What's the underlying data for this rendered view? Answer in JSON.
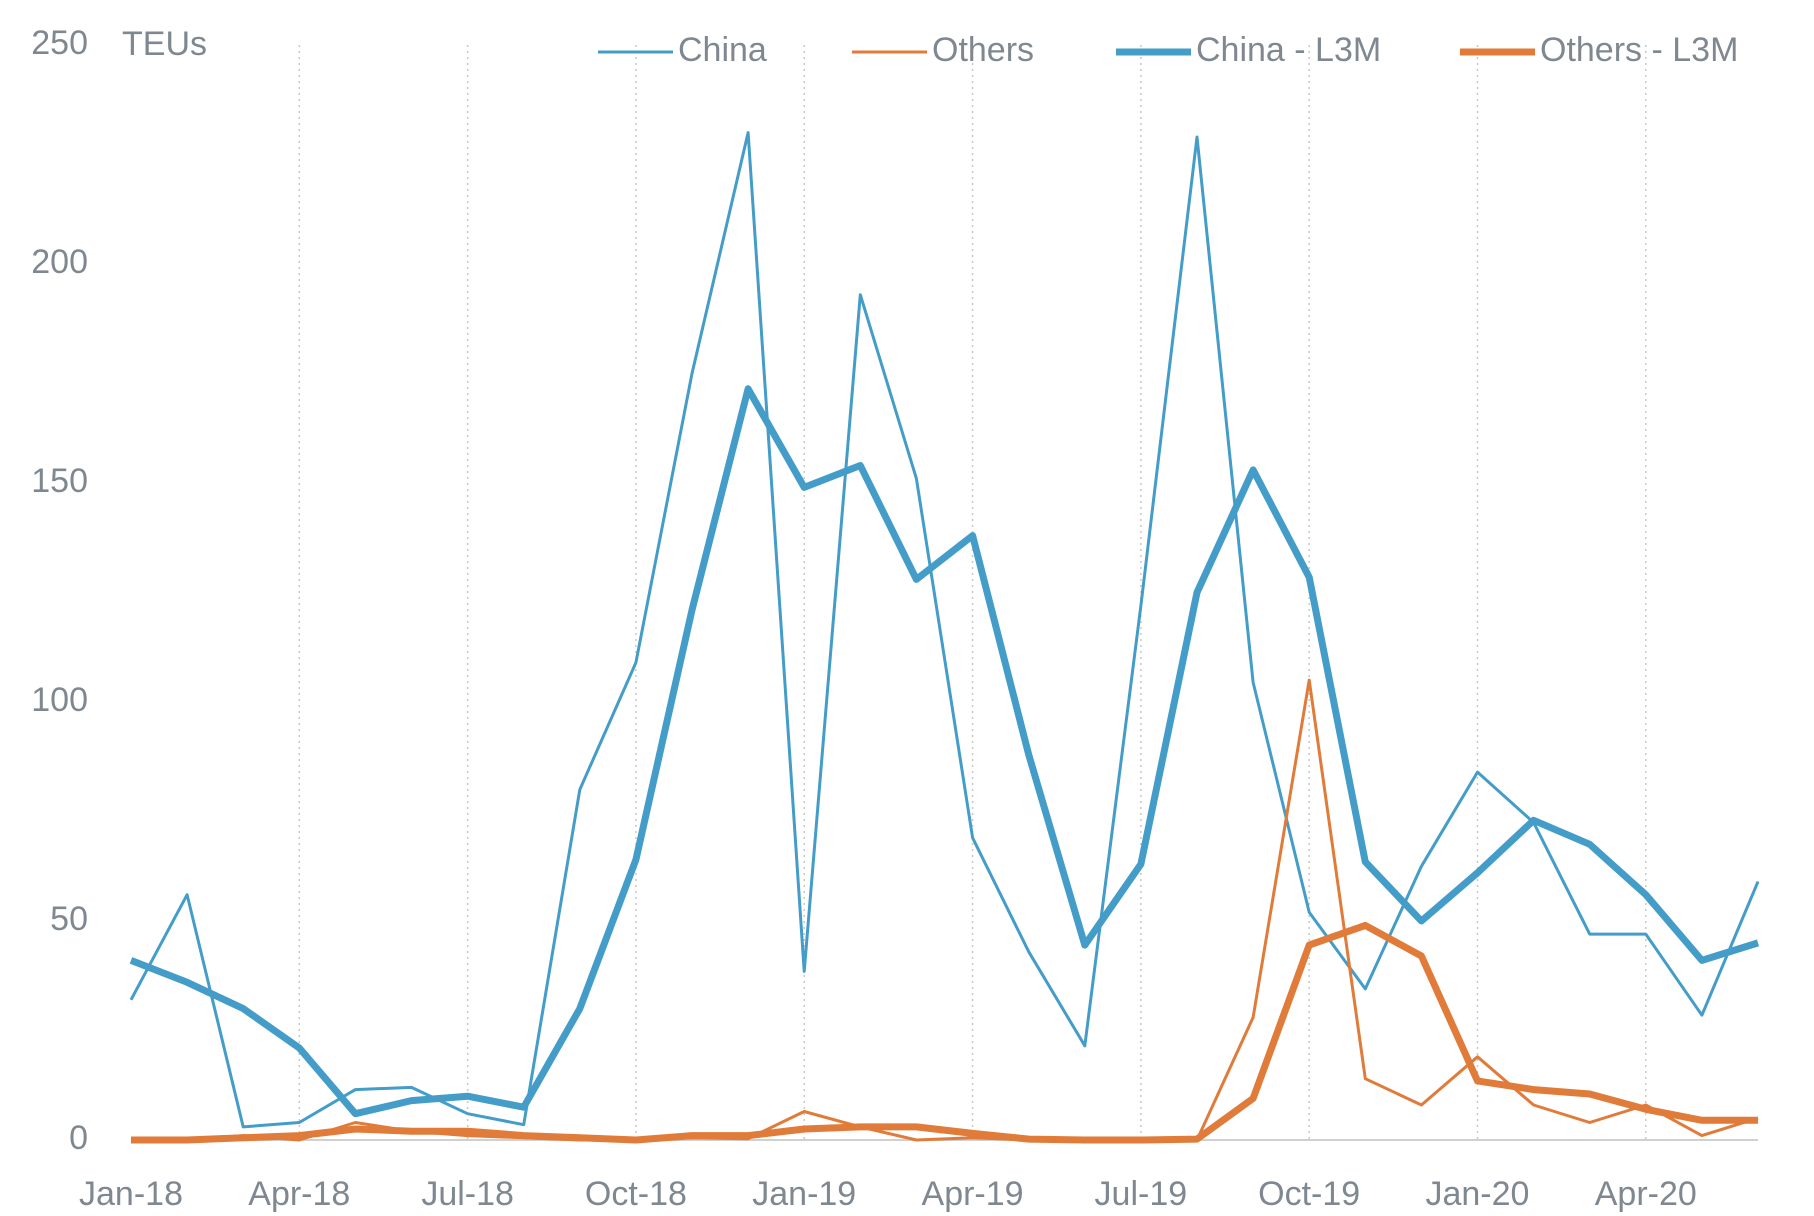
{
  "chart_data": {
    "type": "line",
    "y_label": "TEUs",
    "categories": [
      "Jan-18",
      null,
      null,
      "Apr-18",
      null,
      null,
      "Jul-18",
      null,
      null,
      "Oct-18",
      null,
      null,
      "Jan-19",
      null,
      null,
      "Apr-19",
      null,
      null,
      "Jul-19",
      null,
      null,
      "Oct-19",
      null,
      null,
      "Jan-20",
      null,
      null,
      "Apr-20",
      null,
      null
    ],
    "series": [
      {
        "name": "China",
        "color": "#449dc8",
        "line_width": 3,
        "values": [
          32,
          56,
          3,
          4,
          11.5,
          12,
          6,
          3.5,
          80,
          109,
          175,
          230,
          38.5,
          193,
          151,
          69,
          43,
          21.5,
          122,
          229,
          104.5,
          52,
          34.5,
          62.5,
          84,
          72.5,
          47,
          47,
          28.5,
          59
        ]
      },
      {
        "name": "Others",
        "color": "#e07b39",
        "line_width": 3,
        "values": [
          0,
          0,
          1,
          0,
          4,
          2,
          1,
          0.5,
          0,
          0,
          0.5,
          0.3,
          6.5,
          3,
          0,
          0.5,
          0,
          0,
          0,
          0,
          28,
          105,
          14,
          8,
          19,
          8,
          4,
          8,
          1,
          5
        ]
      },
      {
        "name": "China - L3M",
        "color": "#449dc8",
        "line_width": 7,
        "values": [
          41,
          36,
          30,
          21,
          6,
          9,
          10,
          7.5,
          30,
          64,
          121,
          171.5,
          149,
          154,
          128,
          138,
          88,
          44.5,
          63,
          125,
          153,
          128.5,
          63.5,
          50,
          61,
          73,
          67.5,
          56,
          41,
          45
        ]
      },
      {
        "name": "Others - L3M",
        "color": "#e07b39",
        "line_width": 7,
        "values": [
          0,
          0,
          0.5,
          1,
          2.5,
          2,
          2,
          1,
          0.5,
          0,
          1,
          1,
          2.5,
          3,
          3,
          1.5,
          0.2,
          0,
          0,
          0.2,
          9.5,
          44.5,
          49,
          42,
          13.5,
          11.5,
          10.5,
          7,
          4.5,
          4.5
        ]
      }
    ],
    "ylim": [
      0,
      250
    ],
    "yticks": [
      0,
      50,
      100,
      150,
      200,
      250
    ],
    "grid": "vertical",
    "legend": "top"
  }
}
